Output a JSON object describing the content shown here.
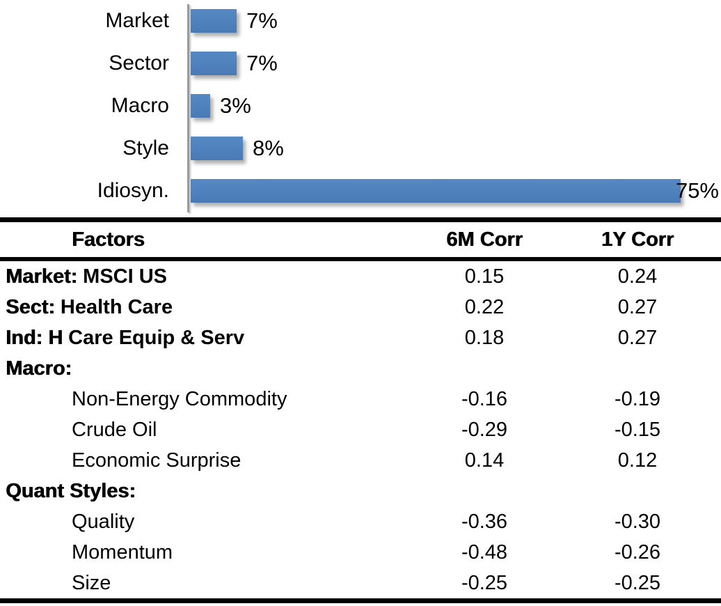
{
  "chart_data": {
    "type": "bar",
    "orientation": "horizontal",
    "title": "",
    "categories": [
      "Market",
      "Sector",
      "Macro",
      "Style",
      "Idiosyn."
    ],
    "values": [
      7,
      7,
      3,
      8,
      75
    ],
    "value_labels": [
      "7%",
      "7%",
      "3%",
      "8%",
      "75%"
    ],
    "xlim": [
      0,
      80
    ],
    "grid": false,
    "legend": "none",
    "bar_color": "#4F81BD",
    "axis_color": "#9B9B9B"
  },
  "table": {
    "header": {
      "factors": "Factors",
      "c6m": "6M Corr",
      "c1y": "1Y Corr"
    },
    "rows": [
      {
        "indent": false,
        "prefix": "Market:",
        "text": "MSCI US",
        "c6m": "0.15",
        "c1y": "0.24"
      },
      {
        "indent": false,
        "prefix": "Sect:",
        "text": "Health Care",
        "c6m": "0.22",
        "c1y": "0.27"
      },
      {
        "indent": false,
        "prefix": "Ind: H",
        "text": "Care Equip & Serv",
        "c6m": "0.18",
        "c1y": "0.27"
      },
      {
        "indent": false,
        "prefix": "Macro:",
        "text": "",
        "c6m": "",
        "c1y": ""
      },
      {
        "indent": true,
        "prefix": "",
        "text": "Non-Energy Commodity",
        "c6m": "-0.16",
        "c1y": "-0.19"
      },
      {
        "indent": true,
        "prefix": "",
        "text": "Crude Oil",
        "c6m": "-0.29",
        "c1y": "-0.15"
      },
      {
        "indent": true,
        "prefix": "",
        "text": "Economic Surprise",
        "c6m": "0.14",
        "c1y": "0.12"
      },
      {
        "indent": false,
        "prefix": "Quant Styles:",
        "text": "",
        "c6m": "",
        "c1y": ""
      },
      {
        "indent": true,
        "prefix": "",
        "text": "Quality",
        "c6m": "-0.36",
        "c1y": "-0.30"
      },
      {
        "indent": true,
        "prefix": "",
        "text": "Momentum",
        "c6m": "-0.48",
        "c1y": "-0.26"
      },
      {
        "indent": true,
        "prefix": "",
        "text": "Size",
        "c6m": "-0.25",
        "c1y": "-0.25"
      }
    ]
  }
}
